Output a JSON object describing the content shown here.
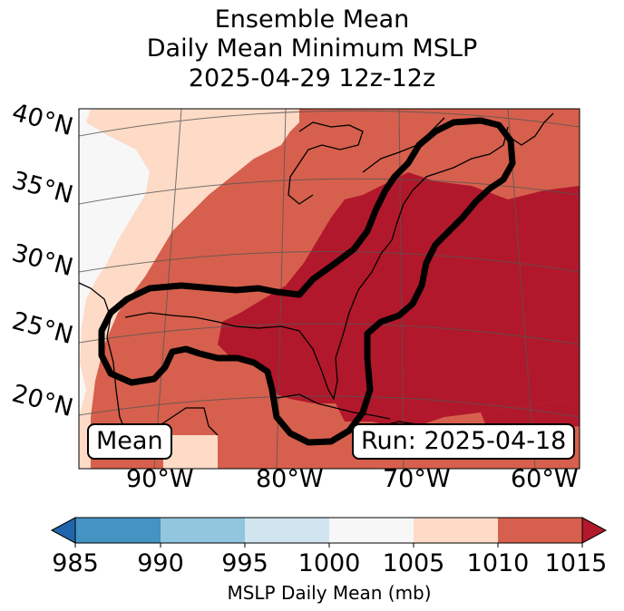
{
  "title": {
    "line1": "Ensemble Mean",
    "line2": "Daily Mean Minimum MSLP",
    "line3": "2025-04-29 12z-12z"
  },
  "map": {
    "lat_labels": [
      "40°N",
      "35°N",
      "30°N",
      "25°N",
      "20°N"
    ],
    "lon_labels": [
      "90°W",
      "80°W",
      "70°W",
      "60°W"
    ],
    "mean_label": "Mean",
    "run_label": "Run: 2025-04-18"
  },
  "colorbar": {
    "ticks": [
      "985",
      "990",
      "995",
      "1000",
      "1005",
      "1010",
      "1015"
    ],
    "label": "MSLP Daily Mean (mb)",
    "colors": [
      "#2166ac",
      "#4393c3",
      "#92c5de",
      "#d1e5f0",
      "#f7f7f7",
      "#fddbc7",
      "#d6604d",
      "#b2182b"
    ]
  },
  "shading_colors": {
    "below_1005": "#f7f7f7",
    "1005_1010": "#fddbc7",
    "1010_1015": "#d6604d",
    "above_1015": "#b2182b"
  }
}
